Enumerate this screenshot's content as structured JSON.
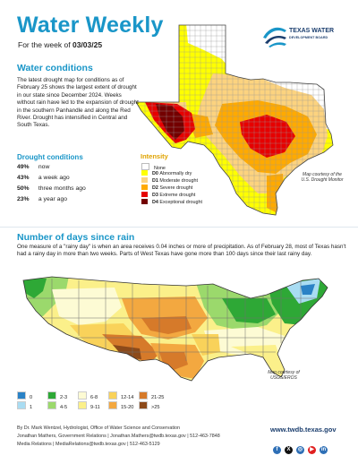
{
  "header": {
    "title": "Water Weekly",
    "week_prefix": "For the week of",
    "week_date": "03/03/25",
    "logo_line1": "TEXAS WATER",
    "logo_line2": "DEVELOPMENT BOARD"
  },
  "water_conditions": {
    "heading": "Water conditions",
    "body": "The latest drought map for conditions as of February 25 shows the largest extent of drought in our state since December 2024. Weeks without rain have led to the expansion of drought in the southern Panhandle and along the Red River. Drought has intensified in Central and South Texas."
  },
  "drought_conditions": {
    "heading": "Drought conditions",
    "rows": [
      {
        "value": "49%",
        "label": "now"
      },
      {
        "value": "43%",
        "label": "a week ago"
      },
      {
        "value": "50%",
        "label": "three months ago"
      },
      {
        "value": "23%",
        "label": "a year ago"
      }
    ]
  },
  "intensity_legend": {
    "heading": "Intensity",
    "items": [
      {
        "code": "",
        "label": "None",
        "color": "#ffffff"
      },
      {
        "code": "D0",
        "label": "Abnormally dry",
        "color": "#ffff00"
      },
      {
        "code": "D1",
        "label": "Moderate drought",
        "color": "#fcd37f"
      },
      {
        "code": "D2",
        "label": "Severe drought",
        "color": "#ffaa00"
      },
      {
        "code": "D3",
        "label": "Extreme drought",
        "color": "#e60000"
      },
      {
        "code": "D4",
        "label": "Exceptional drought",
        "color": "#730000"
      }
    ]
  },
  "texas_map_credit": [
    "Map courtesy of the",
    "U.S. Drought Monitor"
  ],
  "rain_section": {
    "heading": "Number of days since rain",
    "body": "One measure of a \"rainy day\" is when an area receives 0.04 inches or more of precipitation. As of February 28, most of Texas hasn't had a rainy day in more than two weeks. Parts of West Texas have gone more than 100 days since their last rainy day.",
    "credit": [
      "Map courtesy of",
      "USGS/EROS"
    ]
  },
  "rain_legend": [
    {
      "label": "0",
      "color": "#2a82c6"
    },
    {
      "label": "1",
      "color": "#a9dcf2"
    },
    {
      "label": "2-3",
      "color": "#2ea836"
    },
    {
      "label": "4-5",
      "color": "#9bd96c"
    },
    {
      "label": "6-8",
      "color": "#fdfbd4"
    },
    {
      "label": "9-11",
      "color": "#fbf08a"
    },
    {
      "label": "12-14",
      "color": "#f9d25a"
    },
    {
      "label": "15-20",
      "color": "#f3a840"
    },
    {
      "label": "21-25",
      "color": "#d67a2a"
    },
    {
      "label": ">25",
      "color": "#8c4a1a"
    }
  ],
  "footer": {
    "line1": "By Dr. Mark Wentzel, Hydrologist, Office of Water Science and Conservation",
    "line2": "Jonathan Mathers, Government Relations | Jonathan.Mathers@twdb.texas.gov | 512-463-7848",
    "line3": "Media Relations | MediaRelations@twdb.texas.gov | 512-463-5129",
    "url": "www.twdb.texas.gov",
    "social": [
      {
        "icon": "facebook-icon",
        "glyph": "f",
        "color": "#2e6fb6"
      },
      {
        "icon": "x-icon",
        "glyph": "X",
        "color": "#111111"
      },
      {
        "icon": "instagram-icon",
        "glyph": "◎",
        "color": "#2e6fb6"
      },
      {
        "icon": "youtube-icon",
        "glyph": "▶",
        "color": "#e02020"
      },
      {
        "icon": "linkedin-icon",
        "glyph": "in",
        "color": "#2e6fb6"
      }
    ]
  }
}
